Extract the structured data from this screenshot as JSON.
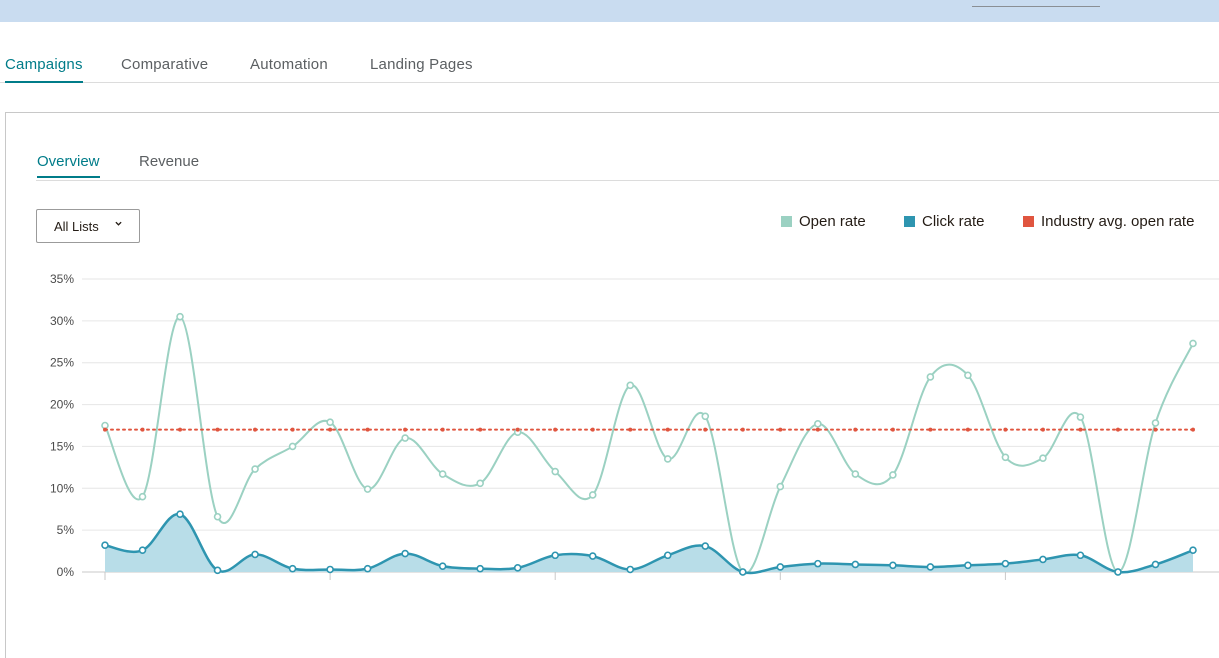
{
  "main_tabs": [
    {
      "label": "Campaigns",
      "active": true
    },
    {
      "label": "Comparative",
      "active": false
    },
    {
      "label": "Automation",
      "active": false
    },
    {
      "label": "Landing Pages",
      "active": false
    }
  ],
  "sub_tabs": [
    {
      "label": "Overview",
      "active": true
    },
    {
      "label": "Revenue",
      "active": false
    }
  ],
  "filter": {
    "selected": "All Lists",
    "icon": "chevron-down-icon"
  },
  "legend": [
    {
      "label": "Open rate",
      "color": "#9bd1c2"
    },
    {
      "label": "Click rate",
      "color": "#2e95b0"
    },
    {
      "label": "Industry avg. open rate",
      "color": "#e0553f"
    }
  ],
  "chart_data": {
    "type": "line",
    "y_ticks": [
      "35%",
      "30%",
      "25%",
      "20%",
      "15%",
      "10%",
      "5%",
      "0%"
    ],
    "ylim": [
      0,
      35
    ],
    "grid": true,
    "legend_position": "top-right",
    "x": [
      1,
      2,
      3,
      4,
      5,
      6,
      7,
      8,
      9,
      10,
      11,
      12,
      13,
      14,
      15,
      16,
      17,
      18,
      19,
      20,
      21,
      22,
      23,
      24,
      25,
      26,
      27,
      28,
      29,
      30
    ],
    "series": [
      {
        "name": "Open rate",
        "color": "#9bd1c2",
        "values": [
          17.5,
          9.0,
          30.5,
          6.6,
          12.3,
          15.0,
          17.9,
          9.9,
          16.0,
          11.7,
          10.6,
          16.7,
          12.0,
          9.2,
          22.3,
          13.5,
          18.6,
          0.0,
          10.2,
          17.7,
          11.7,
          11.6,
          23.3,
          23.5,
          13.7,
          13.6,
          18.5,
          0.0,
          17.8,
          27.3
        ]
      },
      {
        "name": "Click rate",
        "color": "#2e95b0",
        "values": [
          3.2,
          2.6,
          6.9,
          0.2,
          2.1,
          0.4,
          0.3,
          0.4,
          2.2,
          0.7,
          0.4,
          0.5,
          2.0,
          1.9,
          0.3,
          2.0,
          3.1,
          0.0,
          0.6,
          1.0,
          0.9,
          0.8,
          0.6,
          0.8,
          1.0,
          1.5,
          2.0,
          0.0,
          0.9,
          2.6
        ]
      },
      {
        "name": "Industry avg. open rate",
        "color": "#e0553f",
        "values": [
          17,
          17,
          17,
          17,
          17,
          17,
          17,
          17,
          17,
          17,
          17,
          17,
          17,
          17,
          17,
          17,
          17,
          17,
          17,
          17,
          17,
          17,
          17,
          17,
          17,
          17,
          17,
          17,
          17,
          17
        ]
      }
    ]
  }
}
